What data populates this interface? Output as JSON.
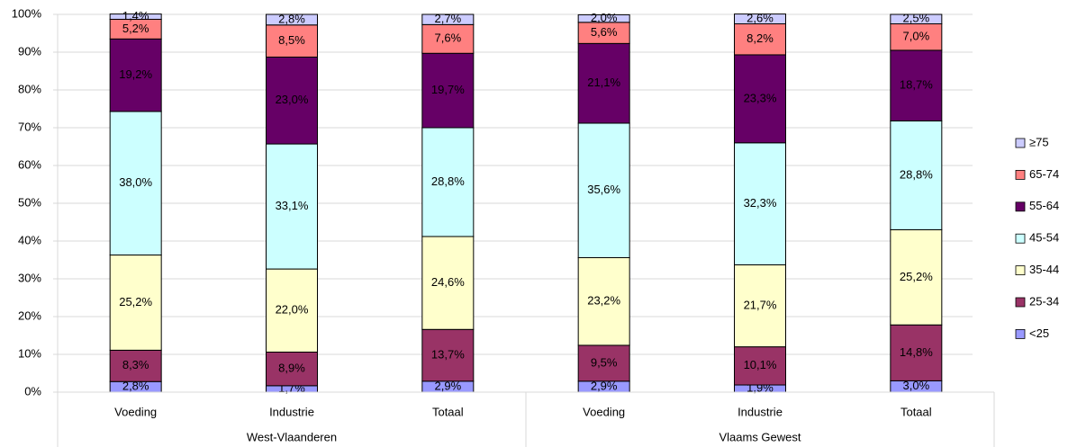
{
  "chart_data": {
    "type": "stacked_bar",
    "categories": [
      "Voeding",
      "Industrie",
      "Totaal",
      "Voeding",
      "Industrie",
      "Totaal"
    ],
    "groups": [
      "West-Vlaanderen",
      "Vlaams Gewest"
    ],
    "ylim": [
      0,
      100
    ],
    "yticks": [
      {
        "value": 0,
        "label": "0%"
      },
      {
        "value": 10,
        "label": "10%"
      },
      {
        "value": 20,
        "label": "20%"
      },
      {
        "value": 30,
        "label": "30%"
      },
      {
        "value": 40,
        "label": "40%"
      },
      {
        "value": 50,
        "label": "50%"
      },
      {
        "value": 60,
        "label": "60%"
      },
      {
        "value": 70,
        "label": "70%"
      },
      {
        "value": 80,
        "label": "80%"
      },
      {
        "value": 90,
        "label": "90%"
      },
      {
        "value": 100,
        "label": "100%"
      }
    ],
    "grid": true,
    "legend": "right",
    "series": [
      {
        "name": "<25",
        "color": "#9999ff",
        "values": [
          2.8,
          1.7,
          2.9,
          2.9,
          1.9,
          3.0
        ],
        "value_labels": [
          "2,8%",
          "1,7%",
          "2,9%",
          "2,9%",
          "1,9%",
          "3,0%"
        ]
      },
      {
        "name": "25-34",
        "color": "#993366",
        "values": [
          8.3,
          8.9,
          13.7,
          9.5,
          10.1,
          14.8
        ],
        "value_labels": [
          "8,3%",
          "8,9%",
          "13,7%",
          "9,5%",
          "10,1%",
          "14,8%"
        ]
      },
      {
        "name": "35-44",
        "color": "#ffffcc",
        "values": [
          25.2,
          22.0,
          24.6,
          23.2,
          21.7,
          25.2
        ],
        "value_labels": [
          "25,2%",
          "22,0%",
          "24,6%",
          "23,2%",
          "21,7%",
          "25,2%"
        ]
      },
      {
        "name": "45-54",
        "color": "#ccffff",
        "values": [
          38.0,
          33.1,
          28.8,
          35.6,
          32.3,
          28.8
        ],
        "value_labels": [
          "38,0%",
          "33,1%",
          "28,8%",
          "35,6%",
          "32,3%",
          "28,8%"
        ]
      },
      {
        "name": "55-64",
        "color": "#660066",
        "values": [
          19.2,
          23.0,
          19.7,
          21.1,
          23.3,
          18.7
        ],
        "value_labels": [
          "19,2%",
          "23,0%",
          "19,7%",
          "21,1%",
          "23,3%",
          "18,7%"
        ]
      },
      {
        "name": "65-74",
        "color": "#ff8080",
        "values": [
          5.2,
          8.5,
          7.6,
          5.6,
          8.2,
          7.0
        ],
        "value_labels": [
          "5,2%",
          "8,5%",
          "7,6%",
          "5,6%",
          "8,2%",
          "7,0%"
        ]
      },
      {
        "name": "≥75",
        "color": "#ccccff",
        "values": [
          1.4,
          2.8,
          2.7,
          2.0,
          2.6,
          2.5
        ],
        "value_labels": [
          "1,4%",
          "2,8%",
          "2,7%",
          "2,0%",
          "2,6%",
          "2,5%"
        ]
      }
    ]
  }
}
